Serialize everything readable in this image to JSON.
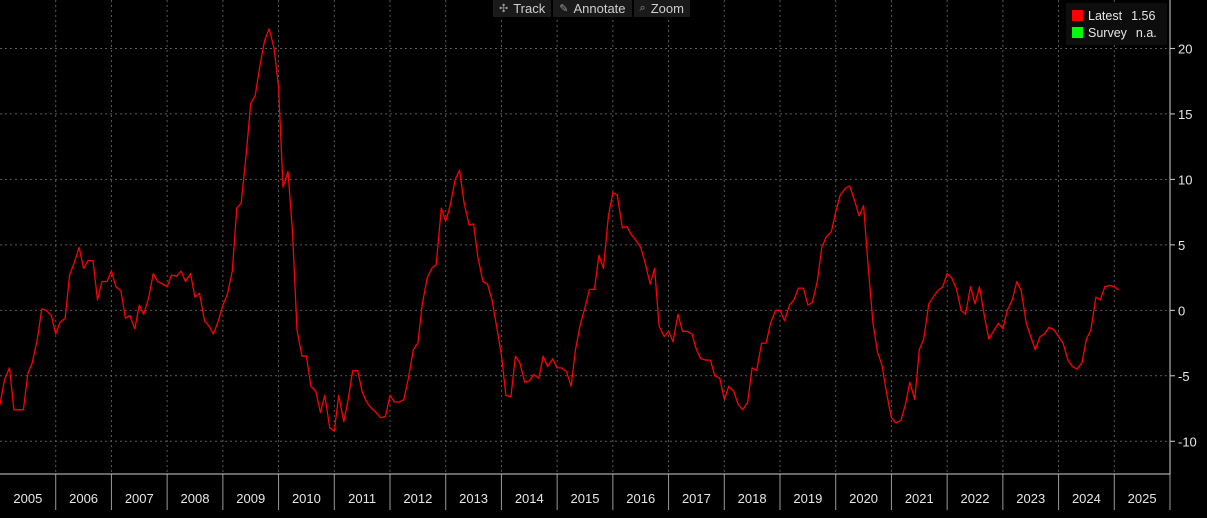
{
  "toolbar": {
    "items": [
      {
        "label": "Track",
        "icon": "crosshair-icon"
      },
      {
        "label": "Annotate",
        "icon": "pencil-icon"
      },
      {
        "label": "Zoom",
        "icon": "magnifier-icon"
      }
    ]
  },
  "legend": {
    "latest_label": "Latest",
    "latest_value": "1.56",
    "latest_color": "#ff0000",
    "survey_label": "Survey",
    "survey_value": "n.a.",
    "survey_color": "#00ff00"
  },
  "chart_data": {
    "type": "line",
    "title": "",
    "xlabel": "",
    "ylabel": "",
    "x_tick_labels": [
      "2005",
      "2006",
      "2007",
      "2008",
      "2009",
      "2010",
      "2011",
      "2012",
      "2013",
      "2014",
      "2015",
      "2016",
      "2017",
      "2018",
      "2019",
      "2020",
      "2021",
      "2022",
      "2023",
      "2024",
      "2025"
    ],
    "y_ticks": [
      20,
      15,
      10,
      5,
      0,
      -5,
      -10
    ],
    "ylim": [
      -12.5,
      23.7
    ],
    "xlim": [
      2004.5,
      2025.5
    ],
    "grid": true,
    "axis_side": "right",
    "series": [
      {
        "name": "Latest",
        "color": "#ff0000",
        "points": [
          [
            2004.5,
            -7.2
          ],
          [
            2004.58,
            -5.3
          ],
          [
            2004.67,
            -4.4
          ],
          [
            2004.75,
            -7.6
          ],
          [
            2004.83,
            -7.6
          ],
          [
            2004.92,
            -7.6
          ],
          [
            2005.0,
            -4.8
          ],
          [
            2005.08,
            -4.0
          ],
          [
            2005.17,
            -2.2
          ],
          [
            2005.25,
            0.1
          ],
          [
            2005.33,
            0.0
          ],
          [
            2005.42,
            -0.4
          ],
          [
            2005.5,
            -1.8
          ],
          [
            2005.58,
            -0.9
          ],
          [
            2005.67,
            -0.6
          ],
          [
            2005.75,
            2.7
          ],
          [
            2005.83,
            3.6
          ],
          [
            2005.92,
            4.8
          ],
          [
            2006.0,
            3.2
          ],
          [
            2006.08,
            3.8
          ],
          [
            2006.17,
            3.8
          ],
          [
            2006.25,
            0.8
          ],
          [
            2006.33,
            2.2
          ],
          [
            2006.42,
            2.2
          ],
          [
            2006.5,
            3.0
          ],
          [
            2006.58,
            1.8
          ],
          [
            2006.67,
            1.5
          ],
          [
            2006.75,
            -0.6
          ],
          [
            2006.83,
            -0.4
          ],
          [
            2006.92,
            -1.4
          ],
          [
            2007.0,
            0.4
          ],
          [
            2007.08,
            -0.3
          ],
          [
            2007.17,
            1.0
          ],
          [
            2007.25,
            2.8
          ],
          [
            2007.33,
            2.2
          ],
          [
            2007.42,
            2.0
          ],
          [
            2007.5,
            1.8
          ],
          [
            2007.58,
            2.7
          ],
          [
            2007.67,
            2.6
          ],
          [
            2007.75,
            3.0
          ],
          [
            2007.83,
            2.2
          ],
          [
            2007.92,
            2.8
          ],
          [
            2008.0,
            1.0
          ],
          [
            2008.08,
            1.3
          ],
          [
            2008.17,
            -0.8
          ],
          [
            2008.25,
            -1.2
          ],
          [
            2008.33,
            -1.8
          ],
          [
            2008.42,
            -0.8
          ],
          [
            2008.5,
            0.4
          ],
          [
            2008.58,
            1.2
          ],
          [
            2008.67,
            3.0
          ],
          [
            2008.75,
            7.8
          ],
          [
            2008.83,
            8.2
          ],
          [
            2008.92,
            12.0
          ],
          [
            2009.0,
            15.8
          ],
          [
            2009.08,
            16.4
          ],
          [
            2009.17,
            18.8
          ],
          [
            2009.25,
            20.6
          ],
          [
            2009.33,
            21.5
          ],
          [
            2009.42,
            20.0
          ],
          [
            2009.5,
            17.0
          ],
          [
            2009.58,
            9.4
          ],
          [
            2009.67,
            10.6
          ],
          [
            2009.75,
            6.0
          ],
          [
            2009.83,
            -1.5
          ],
          [
            2009.92,
            -3.5
          ],
          [
            2010.0,
            -3.5
          ],
          [
            2010.08,
            -5.8
          ],
          [
            2010.17,
            -6.2
          ],
          [
            2010.25,
            -7.8
          ],
          [
            2010.33,
            -6.5
          ],
          [
            2010.42,
            -9.0
          ],
          [
            2010.5,
            -9.2
          ],
          [
            2010.58,
            -6.5
          ],
          [
            2010.67,
            -8.5
          ],
          [
            2010.75,
            -6.8
          ],
          [
            2010.83,
            -4.6
          ],
          [
            2010.92,
            -4.6
          ],
          [
            2011.0,
            -6.2
          ],
          [
            2011.08,
            -7.0
          ],
          [
            2011.17,
            -7.5
          ],
          [
            2011.25,
            -7.8
          ],
          [
            2011.33,
            -8.2
          ],
          [
            2011.42,
            -8.1
          ],
          [
            2011.5,
            -6.5
          ],
          [
            2011.58,
            -7.0
          ],
          [
            2011.67,
            -7.0
          ],
          [
            2011.75,
            -6.8
          ],
          [
            2011.83,
            -5.2
          ],
          [
            2011.92,
            -3.0
          ],
          [
            2012.0,
            -2.5
          ],
          [
            2012.08,
            0.5
          ],
          [
            2012.17,
            2.5
          ],
          [
            2012.25,
            3.2
          ],
          [
            2012.33,
            3.5
          ],
          [
            2012.42,
            7.8
          ],
          [
            2012.5,
            6.8
          ],
          [
            2012.58,
            8.0
          ],
          [
            2012.67,
            10.0
          ],
          [
            2012.75,
            10.7
          ],
          [
            2012.83,
            8.2
          ],
          [
            2012.92,
            6.5
          ],
          [
            2013.0,
            6.6
          ],
          [
            2013.08,
            4.0
          ],
          [
            2013.17,
            2.2
          ],
          [
            2013.25,
            2.0
          ],
          [
            2013.33,
            0.8
          ],
          [
            2013.42,
            -1.4
          ],
          [
            2013.5,
            -3.4
          ],
          [
            2013.58,
            -6.5
          ],
          [
            2013.67,
            -6.6
          ],
          [
            2013.75,
            -3.5
          ],
          [
            2013.83,
            -4.0
          ],
          [
            2013.92,
            -5.5
          ],
          [
            2014.0,
            -5.4
          ],
          [
            2014.08,
            -4.9
          ],
          [
            2014.17,
            -5.2
          ],
          [
            2014.25,
            -3.5
          ],
          [
            2014.33,
            -4.3
          ],
          [
            2014.42,
            -3.7
          ],
          [
            2014.5,
            -4.4
          ],
          [
            2014.58,
            -4.4
          ],
          [
            2014.67,
            -4.7
          ],
          [
            2014.75,
            -5.8
          ],
          [
            2014.83,
            -3.0
          ],
          [
            2014.92,
            -1.0
          ],
          [
            2015.0,
            0.2
          ],
          [
            2015.08,
            1.6
          ],
          [
            2015.17,
            1.6
          ],
          [
            2015.25,
            4.2
          ],
          [
            2015.33,
            3.2
          ],
          [
            2015.42,
            7.2
          ],
          [
            2015.5,
            9.0
          ],
          [
            2015.58,
            8.8
          ],
          [
            2015.67,
            6.3
          ],
          [
            2015.75,
            6.4
          ],
          [
            2015.83,
            5.8
          ],
          [
            2015.92,
            5.3
          ],
          [
            2016.0,
            4.8
          ],
          [
            2016.08,
            3.6
          ],
          [
            2016.17,
            2.0
          ],
          [
            2016.25,
            3.2
          ],
          [
            2016.33,
            -1.2
          ],
          [
            2016.42,
            -2.0
          ],
          [
            2016.5,
            -1.6
          ],
          [
            2016.58,
            -2.4
          ],
          [
            2016.67,
            -0.3
          ],
          [
            2016.75,
            -1.6
          ],
          [
            2016.83,
            -1.6
          ],
          [
            2016.92,
            -1.8
          ],
          [
            2017.0,
            -3.0
          ],
          [
            2017.08,
            -3.7
          ],
          [
            2017.17,
            -3.8
          ],
          [
            2017.25,
            -3.8
          ],
          [
            2017.33,
            -5.0
          ],
          [
            2017.42,
            -5.2
          ],
          [
            2017.5,
            -6.8
          ],
          [
            2017.58,
            -5.8
          ],
          [
            2017.67,
            -6.2
          ],
          [
            2017.75,
            -7.2
          ],
          [
            2017.83,
            -7.6
          ],
          [
            2017.92,
            -7.0
          ],
          [
            2018.0,
            -4.4
          ],
          [
            2018.08,
            -4.6
          ],
          [
            2018.17,
            -2.5
          ],
          [
            2018.25,
            -2.5
          ],
          [
            2018.33,
            -1.0
          ],
          [
            2018.42,
            0.0
          ],
          [
            2018.5,
            0.0
          ],
          [
            2018.58,
            -0.8
          ],
          [
            2018.67,
            0.4
          ],
          [
            2018.75,
            0.8
          ],
          [
            2018.83,
            1.7
          ],
          [
            2018.92,
            1.7
          ],
          [
            2019.0,
            0.4
          ],
          [
            2019.08,
            0.6
          ],
          [
            2019.17,
            2.2
          ],
          [
            2019.25,
            4.8
          ],
          [
            2019.33,
            5.6
          ],
          [
            2019.42,
            6.0
          ],
          [
            2019.5,
            7.5
          ],
          [
            2019.58,
            8.8
          ],
          [
            2019.67,
            9.3
          ],
          [
            2019.75,
            9.5
          ],
          [
            2019.83,
            8.5
          ],
          [
            2019.92,
            7.2
          ],
          [
            2020.0,
            8.0
          ],
          [
            2020.08,
            3.5
          ],
          [
            2020.17,
            -1.0
          ],
          [
            2020.25,
            -3.2
          ],
          [
            2020.33,
            -4.2
          ],
          [
            2020.42,
            -6.5
          ],
          [
            2020.5,
            -8.2
          ],
          [
            2020.58,
            -8.6
          ],
          [
            2020.67,
            -8.4
          ],
          [
            2020.75,
            -7.2
          ],
          [
            2020.83,
            -5.5
          ],
          [
            2020.92,
            -6.8
          ],
          [
            2021.0,
            -3.0
          ],
          [
            2021.08,
            -2.2
          ],
          [
            2021.17,
            0.5
          ],
          [
            2021.25,
            1.0
          ],
          [
            2021.33,
            1.5
          ],
          [
            2021.42,
            1.8
          ],
          [
            2021.5,
            2.8
          ],
          [
            2021.58,
            2.5
          ],
          [
            2021.67,
            1.6
          ],
          [
            2021.75,
            0.0
          ],
          [
            2021.83,
            -0.3
          ],
          [
            2021.92,
            1.8
          ],
          [
            2022.0,
            0.5
          ],
          [
            2022.08,
            1.8
          ],
          [
            2022.17,
            -0.5
          ],
          [
            2022.25,
            -2.2
          ],
          [
            2022.33,
            -1.6
          ],
          [
            2022.42,
            -1.0
          ],
          [
            2022.5,
            -1.4
          ],
          [
            2022.58,
            0.0
          ],
          [
            2022.67,
            0.8
          ],
          [
            2022.75,
            2.2
          ],
          [
            2022.83,
            1.5
          ],
          [
            2022.92,
            -1.0
          ],
          [
            2023.0,
            -2.0
          ],
          [
            2023.08,
            -3.0
          ],
          [
            2023.17,
            -2.0
          ],
          [
            2023.25,
            -1.8
          ],
          [
            2023.33,
            -1.3
          ],
          [
            2023.42,
            -1.5
          ],
          [
            2023.5,
            -2.0
          ],
          [
            2023.58,
            -2.5
          ],
          [
            2023.67,
            -3.8
          ],
          [
            2023.75,
            -4.3
          ],
          [
            2023.83,
            -4.5
          ],
          [
            2023.92,
            -4.0
          ],
          [
            2024.0,
            -2.2
          ],
          [
            2024.08,
            -1.5
          ],
          [
            2024.17,
            1.0
          ],
          [
            2024.25,
            0.8
          ],
          [
            2024.33,
            1.8
          ],
          [
            2024.42,
            1.9
          ],
          [
            2024.5,
            1.8
          ],
          [
            2024.58,
            1.56
          ]
        ]
      }
    ]
  }
}
